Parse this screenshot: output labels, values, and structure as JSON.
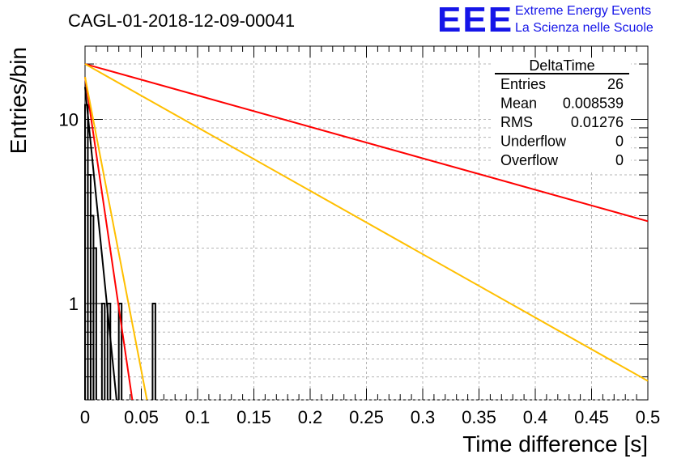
{
  "chart_data": {
    "type": "histogram",
    "title": "CAGL-01-2018-12-09-00041",
    "xlabel": "Time difference [s]",
    "ylabel": "Entries/bin",
    "xlim": [
      0,
      0.5
    ],
    "ylim": [
      0.3,
      25
    ],
    "yscale": "log",
    "grid": true,
    "x_ticks": [
      "0",
      "0.05",
      "0.1",
      "0.15",
      "0.2",
      "0.25",
      "0.3",
      "0.35",
      "0.4",
      "0.45",
      "0.5"
    ],
    "y_ticks": [
      "1",
      "10"
    ],
    "histogram": {
      "bin_width": 0.0025,
      "bins": [
        {
          "x": 0.0,
          "count": 12
        },
        {
          "x": 0.0025,
          "count": 5
        },
        {
          "x": 0.005,
          "count": 3
        },
        {
          "x": 0.0075,
          "count": 2
        },
        {
          "x": 0.0125,
          "count": 0
        },
        {
          "x": 0.015,
          "count": 1
        },
        {
          "x": 0.02,
          "count": 1
        },
        {
          "x": 0.0275,
          "count": 0
        },
        {
          "x": 0.03,
          "count": 1
        },
        {
          "x": 0.06,
          "count": 1
        }
      ],
      "line_color": "#000000"
    },
    "fit_curves": [
      {
        "color": "#ff0000",
        "x_start": 0.0,
        "x_end": 0.5,
        "y_start": 20,
        "y_end": 2.8
      },
      {
        "color": "#ffbf00",
        "x_start": 0.0,
        "x_end": 0.5,
        "y_start": 20,
        "y_end": 0.38
      },
      {
        "color": "#ff0000",
        "x_start": 0.0,
        "x_end": 0.042,
        "y_start": 17,
        "y_end": 0.3
      },
      {
        "color": "#ffbf00",
        "x_start": 0.0,
        "x_end": 0.055,
        "y_start": 17,
        "y_end": 0.3
      },
      {
        "color": "#000000",
        "x_start": 0.0,
        "x_end": 0.028,
        "y_start": 15,
        "y_end": 0.3
      }
    ],
    "stats_box": {
      "title": "DeltaTime",
      "rows": [
        {
          "label": "Entries",
          "value": "26"
        },
        {
          "label": "Mean",
          "value": "0.008539"
        },
        {
          "label": "RMS",
          "value": "0.01276"
        },
        {
          "label": "Underflow",
          "value": "0"
        },
        {
          "label": "Overflow",
          "value": "0"
        }
      ]
    }
  },
  "logo": {
    "mark": "EEE",
    "line1": "Extreme Energy Events",
    "line2": "La Scienza nelle Scuole",
    "color": "#1515e8"
  }
}
